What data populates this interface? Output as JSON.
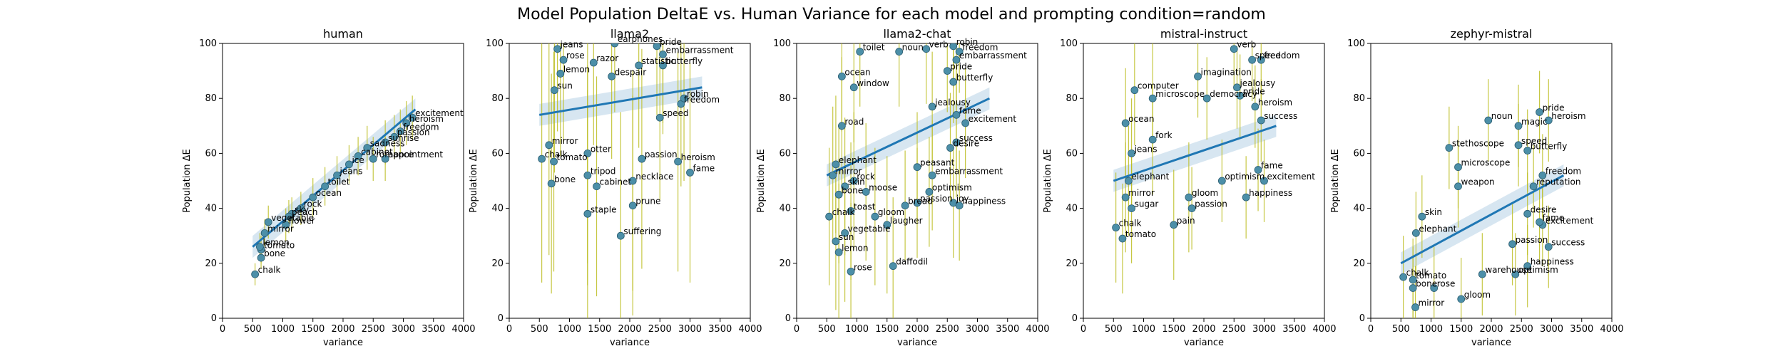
{
  "figure": {
    "title": "Model Population DeltaE vs. Human Variance for each model and prompting condition=random"
  },
  "chart_data": [
    {
      "type": "scatter",
      "title": "human",
      "xlabel": "variance",
      "ylabel": "Population ΔE",
      "xlim": [
        0,
        4000
      ],
      "ylim": [
        0,
        100
      ],
      "xticks": [
        "0",
        "500",
        "1000",
        "1500",
        "2000",
        "2500",
        "3000",
        "3500",
        "4000"
      ],
      "yticks": [
        "0",
        "20",
        "40",
        "60",
        "80",
        "100"
      ],
      "regression": {
        "x": [
          500,
          3200
        ],
        "y": [
          26,
          76
        ]
      },
      "points": [
        {
          "label": "chalk",
          "x": 540,
          "y": 16,
          "err": 4
        },
        {
          "label": "bone",
          "x": 640,
          "y": 22,
          "err": 4
        },
        {
          "label": "tomato",
          "x": 640,
          "y": 25,
          "err": 5
        },
        {
          "label": "lemon",
          "x": 620,
          "y": 26,
          "err": 5
        },
        {
          "label": "mirror",
          "x": 700,
          "y": 31,
          "err": 5
        },
        {
          "label": "vegetable",
          "x": 760,
          "y": 35,
          "err": 6
        },
        {
          "label": "flower",
          "x": 1050,
          "y": 34,
          "err": 6
        },
        {
          "label": "sky",
          "x": 1150,
          "y": 38,
          "err": 6
        },
        {
          "label": "peach",
          "x": 1100,
          "y": 37,
          "err": 6
        },
        {
          "label": "rock",
          "x": 1300,
          "y": 40,
          "err": 6
        },
        {
          "label": "ocean",
          "x": 1500,
          "y": 44,
          "err": 7
        },
        {
          "label": "toilet",
          "x": 1700,
          "y": 48,
          "err": 7
        },
        {
          "label": "jeans",
          "x": 1900,
          "y": 52,
          "err": 7
        },
        {
          "label": "ice",
          "x": 2100,
          "y": 56,
          "err": 7
        },
        {
          "label": "cabinet",
          "x": 2250,
          "y": 59,
          "err": 7
        },
        {
          "label": "sadness",
          "x": 2400,
          "y": 62,
          "err": 8
        },
        {
          "label": "romance",
          "x": 2500,
          "y": 58,
          "err": 8
        },
        {
          "label": "appointment",
          "x": 2700,
          "y": 58,
          "err": 8
        },
        {
          "label": "sunrise",
          "x": 2700,
          "y": 64,
          "err": 8
        },
        {
          "label": "passion",
          "x": 2850,
          "y": 66,
          "err": 8
        },
        {
          "label": "freedom",
          "x": 2950,
          "y": 68,
          "err": 8
        },
        {
          "label": "heroism",
          "x": 3050,
          "y": 71,
          "err": 8
        },
        {
          "label": "excitement",
          "x": 3150,
          "y": 73,
          "err": 8
        }
      ]
    },
    {
      "type": "scatter",
      "title": "llama2",
      "xlabel": "variance",
      "ylabel": "Population ΔE",
      "xlim": [
        0,
        4000
      ],
      "ylim": [
        0,
        100
      ],
      "xticks": [
        "0",
        "500",
        "1000",
        "1500",
        "2000",
        "2500",
        "3000",
        "3500",
        "4000"
      ],
      "yticks": [
        "0",
        "20",
        "40",
        "60",
        "80",
        "100"
      ],
      "regression": {
        "x": [
          500,
          3200
        ],
        "y": [
          74,
          84
        ]
      },
      "points": [
        {
          "label": "chalk",
          "x": 540,
          "y": 58,
          "err": 45
        },
        {
          "label": "bone",
          "x": 700,
          "y": 49,
          "err": 40
        },
        {
          "label": "mirror",
          "x": 660,
          "y": 63,
          "err": 40
        },
        {
          "label": "tomato",
          "x": 740,
          "y": 57,
          "err": 40
        },
        {
          "label": "jeans",
          "x": 800,
          "y": 98,
          "err": 30
        },
        {
          "label": "rose",
          "x": 900,
          "y": 94,
          "err": 30
        },
        {
          "label": "lemon",
          "x": 850,
          "y": 89,
          "err": 30
        },
        {
          "label": "sun",
          "x": 750,
          "y": 83,
          "err": 30
        },
        {
          "label": "otter",
          "x": 1300,
          "y": 60,
          "err": 40
        },
        {
          "label": "tripod",
          "x": 1300,
          "y": 52,
          "err": 40
        },
        {
          "label": "cabinet",
          "x": 1450,
          "y": 48,
          "err": 40
        },
        {
          "label": "staple",
          "x": 1300,
          "y": 38,
          "err": 45
        },
        {
          "label": "razor",
          "x": 1400,
          "y": 93,
          "err": 30
        },
        {
          "label": "despair",
          "x": 1700,
          "y": 88,
          "err": 30
        },
        {
          "label": "earphones",
          "x": 1750,
          "y": 100,
          "err": 25
        },
        {
          "label": "necklace",
          "x": 2050,
          "y": 50,
          "err": 40
        },
        {
          "label": "prune",
          "x": 2050,
          "y": 41,
          "err": 40
        },
        {
          "label": "suffering",
          "x": 1850,
          "y": 30,
          "err": 45
        },
        {
          "label": "statistic",
          "x": 2150,
          "y": 92,
          "err": 30
        },
        {
          "label": "pride",
          "x": 2450,
          "y": 99,
          "err": 25
        },
        {
          "label": "passion",
          "x": 2200,
          "y": 58,
          "err": 40
        },
        {
          "label": "embarrassment",
          "x": 2550,
          "y": 96,
          "err": 25
        },
        {
          "label": "butterfly",
          "x": 2550,
          "y": 92,
          "err": 25
        },
        {
          "label": "freedom",
          "x": 2850,
          "y": 78,
          "err": 30
        },
        {
          "label": "robin",
          "x": 2900,
          "y": 80,
          "err": 30
        },
        {
          "label": "heroism",
          "x": 2800,
          "y": 57,
          "err": 40
        },
        {
          "label": "fame",
          "x": 3000,
          "y": 53,
          "err": 40
        },
        {
          "label": "speed",
          "x": 2500,
          "y": 73,
          "err": 30
        }
      ]
    },
    {
      "type": "scatter",
      "title": "llama2-chat",
      "xlabel": "variance",
      "ylabel": "Population ΔE",
      "xlim": [
        0,
        4000
      ],
      "ylim": [
        0,
        100
      ],
      "xticks": [
        "0",
        "500",
        "1000",
        "1500",
        "2000",
        "2500",
        "3000",
        "3500",
        "4000"
      ],
      "yticks": [
        "0",
        "20",
        "40",
        "60",
        "80",
        "100"
      ],
      "regression": {
        "x": [
          500,
          3200
        ],
        "y": [
          52,
          80
        ]
      },
      "points": [
        {
          "label": "toilet",
          "x": 1050,
          "y": 97,
          "err": 20
        },
        {
          "label": "noun",
          "x": 1700,
          "y": 97,
          "err": 20
        },
        {
          "label": "verb",
          "x": 2150,
          "y": 98,
          "err": 20
        },
        {
          "label": "robin",
          "x": 2600,
          "y": 99,
          "err": 15
        },
        {
          "label": "freedom",
          "x": 2700,
          "y": 97,
          "err": 15
        },
        {
          "label": "embarrassment",
          "x": 2650,
          "y": 94,
          "err": 15
        },
        {
          "label": "ocean",
          "x": 750,
          "y": 88,
          "err": 20
        },
        {
          "label": "window",
          "x": 950,
          "y": 84,
          "err": 20
        },
        {
          "label": "pride",
          "x": 2500,
          "y": 90,
          "err": 15
        },
        {
          "label": "butterfly",
          "x": 2600,
          "y": 86,
          "err": 15
        },
        {
          "label": "jealousy",
          "x": 2250,
          "y": 77,
          "err": 20
        },
        {
          "label": "fame",
          "x": 2650,
          "y": 74,
          "err": 20
        },
        {
          "label": "excitement",
          "x": 2800,
          "y": 71,
          "err": 20
        },
        {
          "label": "road",
          "x": 750,
          "y": 70,
          "err": 25
        },
        {
          "label": "success",
          "x": 2650,
          "y": 64,
          "err": 20
        },
        {
          "label": "desire",
          "x": 2550,
          "y": 62,
          "err": 20
        },
        {
          "label": "elephant",
          "x": 650,
          "y": 56,
          "err": 25
        },
        {
          "label": "mirror",
          "x": 600,
          "y": 52,
          "err": 25
        },
        {
          "label": "peasant",
          "x": 2000,
          "y": 55,
          "err": 20
        },
        {
          "label": "embarrassment",
          "x": 2250,
          "y": 52,
          "err": 20
        },
        {
          "label": "rock",
          "x": 950,
          "y": 50,
          "err": 25
        },
        {
          "label": "skin",
          "x": 800,
          "y": 48,
          "err": 25
        },
        {
          "label": "bone",
          "x": 700,
          "y": 45,
          "err": 25
        },
        {
          "label": "moose",
          "x": 1150,
          "y": 46,
          "err": 25
        },
        {
          "label": "optimism",
          "x": 2200,
          "y": 46,
          "err": 20
        },
        {
          "label": "passion",
          "x": 2000,
          "y": 42,
          "err": 20
        },
        {
          "label": "joy",
          "x": 2600,
          "y": 42,
          "err": 20
        },
        {
          "label": "happiness",
          "x": 2700,
          "y": 41,
          "err": 20
        },
        {
          "label": "bread",
          "x": 1800,
          "y": 41,
          "err": 20
        },
        {
          "label": "chalk",
          "x": 540,
          "y": 37,
          "err": 25
        },
        {
          "label": "toast",
          "x": 900,
          "y": 39,
          "err": 25
        },
        {
          "label": "gloom",
          "x": 1300,
          "y": 37,
          "err": 25
        },
        {
          "label": "laugher",
          "x": 1500,
          "y": 34,
          "err": 25
        },
        {
          "label": "vegetable",
          "x": 800,
          "y": 31,
          "err": 25
        },
        {
          "label": "sun",
          "x": 650,
          "y": 28,
          "err": 25
        },
        {
          "label": "lemon",
          "x": 700,
          "y": 24,
          "err": 25
        },
        {
          "label": "rose",
          "x": 900,
          "y": 17,
          "err": 25
        },
        {
          "label": "daffodil",
          "x": 1600,
          "y": 19,
          "err": 25
        }
      ]
    },
    {
      "type": "scatter",
      "title": "mistral-instruct",
      "xlabel": "variance",
      "ylabel": "Population ΔE",
      "xlim": [
        0,
        4000
      ],
      "ylim": [
        0,
        100
      ],
      "xticks": [
        "0",
        "500",
        "1000",
        "1500",
        "2000",
        "2500",
        "3000",
        "3500",
        "4000"
      ],
      "yticks": [
        "0",
        "20",
        "40",
        "60",
        "80",
        "100"
      ],
      "regression": {
        "x": [
          500,
          3200
        ],
        "y": [
          50,
          70
        ]
      },
      "points": [
        {
          "label": "verb",
          "x": 2500,
          "y": 98,
          "err": 15
        },
        {
          "label": "speed",
          "x": 2800,
          "y": 94,
          "err": 15
        },
        {
          "label": "freedom",
          "x": 2950,
          "y": 94,
          "err": 15
        },
        {
          "label": "imagination",
          "x": 1900,
          "y": 88,
          "err": 15
        },
        {
          "label": "computer",
          "x": 850,
          "y": 83,
          "err": 20
        },
        {
          "label": "microscope",
          "x": 1150,
          "y": 80,
          "err": 20
        },
        {
          "label": "democracy",
          "x": 2050,
          "y": 80,
          "err": 15
        },
        {
          "label": "jealousy",
          "x": 2550,
          "y": 84,
          "err": 15
        },
        {
          "label": "pride",
          "x": 2600,
          "y": 81,
          "err": 15
        },
        {
          "label": "heroism",
          "x": 2850,
          "y": 77,
          "err": 15
        },
        {
          "label": "success",
          "x": 2950,
          "y": 72,
          "err": 15
        },
        {
          "label": "ocean",
          "x": 700,
          "y": 71,
          "err": 20
        },
        {
          "label": "fork",
          "x": 1150,
          "y": 65,
          "err": 20
        },
        {
          "label": "jeans",
          "x": 800,
          "y": 60,
          "err": 20
        },
        {
          "label": "elephant",
          "x": 750,
          "y": 50,
          "err": 20
        },
        {
          "label": "fame",
          "x": 2900,
          "y": 54,
          "err": 15
        },
        {
          "label": "excitement",
          "x": 3000,
          "y": 50,
          "err": 15
        },
        {
          "label": "optimism",
          "x": 2300,
          "y": 50,
          "err": 15
        },
        {
          "label": "mirror",
          "x": 700,
          "y": 44,
          "err": 20
        },
        {
          "label": "gloom",
          "x": 1750,
          "y": 44,
          "err": 20
        },
        {
          "label": "happiness",
          "x": 2700,
          "y": 44,
          "err": 15
        },
        {
          "label": "sugar",
          "x": 800,
          "y": 40,
          "err": 20
        },
        {
          "label": "passion",
          "x": 1800,
          "y": 40,
          "err": 15
        },
        {
          "label": "chalk",
          "x": 540,
          "y": 33,
          "err": 20
        },
        {
          "label": "pain",
          "x": 1500,
          "y": 34,
          "err": 20
        },
        {
          "label": "tomato",
          "x": 650,
          "y": 29,
          "err": 20
        }
      ]
    },
    {
      "type": "scatter",
      "title": "zephyr-mistral",
      "xlabel": "variance",
      "ylabel": "Population ΔE",
      "xlim": [
        0,
        4000
      ],
      "ylim": [
        0,
        100
      ],
      "xticks": [
        "0",
        "500",
        "1000",
        "1500",
        "2000",
        "2500",
        "3000",
        "3500",
        "4000"
      ],
      "yticks": [
        "0",
        "20",
        "40",
        "60",
        "80",
        "100"
      ],
      "regression": {
        "x": [
          500,
          3200
        ],
        "y": [
          20,
          52
        ]
      },
      "points": [
        {
          "label": "pride",
          "x": 2800,
          "y": 75,
          "err": 15
        },
        {
          "label": "magic",
          "x": 2450,
          "y": 70,
          "err": 15
        },
        {
          "label": "heroism",
          "x": 2950,
          "y": 72,
          "err": 15
        },
        {
          "label": "noun",
          "x": 1950,
          "y": 72,
          "err": 15
        },
        {
          "label": "stethoscope",
          "x": 1300,
          "y": 62,
          "err": 15
        },
        {
          "label": "butterfly",
          "x": 2600,
          "y": 61,
          "err": 15
        },
        {
          "label": "speed",
          "x": 2450,
          "y": 63,
          "err": 15
        },
        {
          "label": "microscope",
          "x": 1450,
          "y": 55,
          "err": 15
        },
        {
          "label": "freedom",
          "x": 2850,
          "y": 52,
          "err": 15
        },
        {
          "label": "weapon",
          "x": 1450,
          "y": 48,
          "err": 15
        },
        {
          "label": "reputation",
          "x": 2700,
          "y": 48,
          "err": 15
        },
        {
          "label": "desire",
          "x": 2600,
          "y": 38,
          "err": 15
        },
        {
          "label": "excitement",
          "x": 2850,
          "y": 34,
          "err": 15
        },
        {
          "label": "fame",
          "x": 2800,
          "y": 35,
          "err": 15
        },
        {
          "label": "skin",
          "x": 850,
          "y": 37,
          "err": 15
        },
        {
          "label": "elephant",
          "x": 750,
          "y": 31,
          "err": 15
        },
        {
          "label": "success",
          "x": 2950,
          "y": 26,
          "err": 15
        },
        {
          "label": "passion",
          "x": 2350,
          "y": 27,
          "err": 15
        },
        {
          "label": "happiness",
          "x": 2600,
          "y": 19,
          "err": 15
        },
        {
          "label": "optimism",
          "x": 2400,
          "y": 16,
          "err": 15
        },
        {
          "label": "warehouse",
          "x": 1850,
          "y": 16,
          "err": 15
        },
        {
          "label": "chalk",
          "x": 540,
          "y": 15,
          "err": 15
        },
        {
          "label": "tomato",
          "x": 700,
          "y": 14,
          "err": 15
        },
        {
          "label": "bone",
          "x": 700,
          "y": 11,
          "err": 15
        },
        {
          "label": "rose",
          "x": 1050,
          "y": 11,
          "err": 15
        },
        {
          "label": "gloom",
          "x": 1500,
          "y": 7,
          "err": 15
        },
        {
          "label": "mirror",
          "x": 740,
          "y": 4,
          "err": 15
        }
      ]
    }
  ]
}
